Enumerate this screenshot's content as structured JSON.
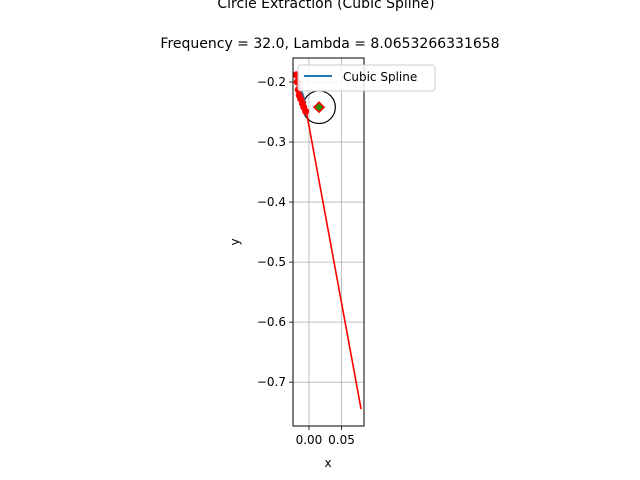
{
  "chart_data": {
    "type": "line",
    "title": "Circle Extraction (Cubic Spline)",
    "subtitle": "Frequency = 32.0, Lambda = 8.0653266331658",
    "xlabel": "x",
    "ylabel": "y",
    "xlim": [
      -0.0245,
      0.0845
    ],
    "ylim": [
      -0.773,
      -0.16
    ],
    "grid": true,
    "legend_placement": "upper-left",
    "x_ticks": [
      {
        "value": 0.0,
        "label": "0.00"
      },
      {
        "value": 0.05,
        "label": "0.05"
      }
    ],
    "y_ticks": [
      {
        "value": -0.2,
        "label": "−0.2"
      },
      {
        "value": -0.3,
        "label": "−0.3"
      },
      {
        "value": -0.4,
        "label": "−0.4"
      },
      {
        "value": -0.5,
        "label": "−0.5"
      },
      {
        "value": -0.6,
        "label": "−0.6"
      },
      {
        "value": -0.7,
        "label": "−0.7"
      }
    ],
    "series": [
      {
        "name": "Cubic Spline",
        "color": "#1f77b4",
        "x": [
          -0.019,
          -0.017,
          -0.014,
          -0.012,
          -0.01,
          -0.008,
          -0.006
        ],
        "y": [
          -0.19,
          -0.2,
          -0.208,
          -0.215,
          -0.222,
          -0.229,
          -0.236
        ]
      },
      {
        "color": "#ff0000",
        "x": [
          -0.02,
          -0.019,
          -0.018,
          -0.0175,
          -0.0165,
          -0.016,
          -0.015,
          -0.014,
          -0.012,
          -0.01,
          -0.008,
          -0.006,
          -0.004,
          0.08
        ],
        "y": [
          -0.187,
          -0.205,
          -0.19,
          -0.215,
          -0.222,
          -0.228,
          -0.218,
          -0.233,
          -0.222,
          -0.238,
          -0.228,
          -0.243,
          -0.25,
          -0.745
        ]
      }
    ],
    "markers": {
      "points": {
        "color": "#ff0000",
        "x": [
          -0.0195,
          -0.018,
          -0.0165,
          -0.015,
          -0.013,
          -0.01,
          -0.008,
          -0.005
        ],
        "y": [
          -0.188,
          -0.2,
          -0.213,
          -0.222,
          -0.228,
          -0.236,
          -0.242,
          -0.249
        ]
      },
      "circle": {
        "center_x": 0.0155,
        "center_y": -0.242,
        "radius": 0.025,
        "color": "#000000"
      },
      "center_marker": {
        "x": 0.0155,
        "y": -0.242,
        "fill": "#2e8b00",
        "edge": "#ff0000"
      }
    }
  }
}
